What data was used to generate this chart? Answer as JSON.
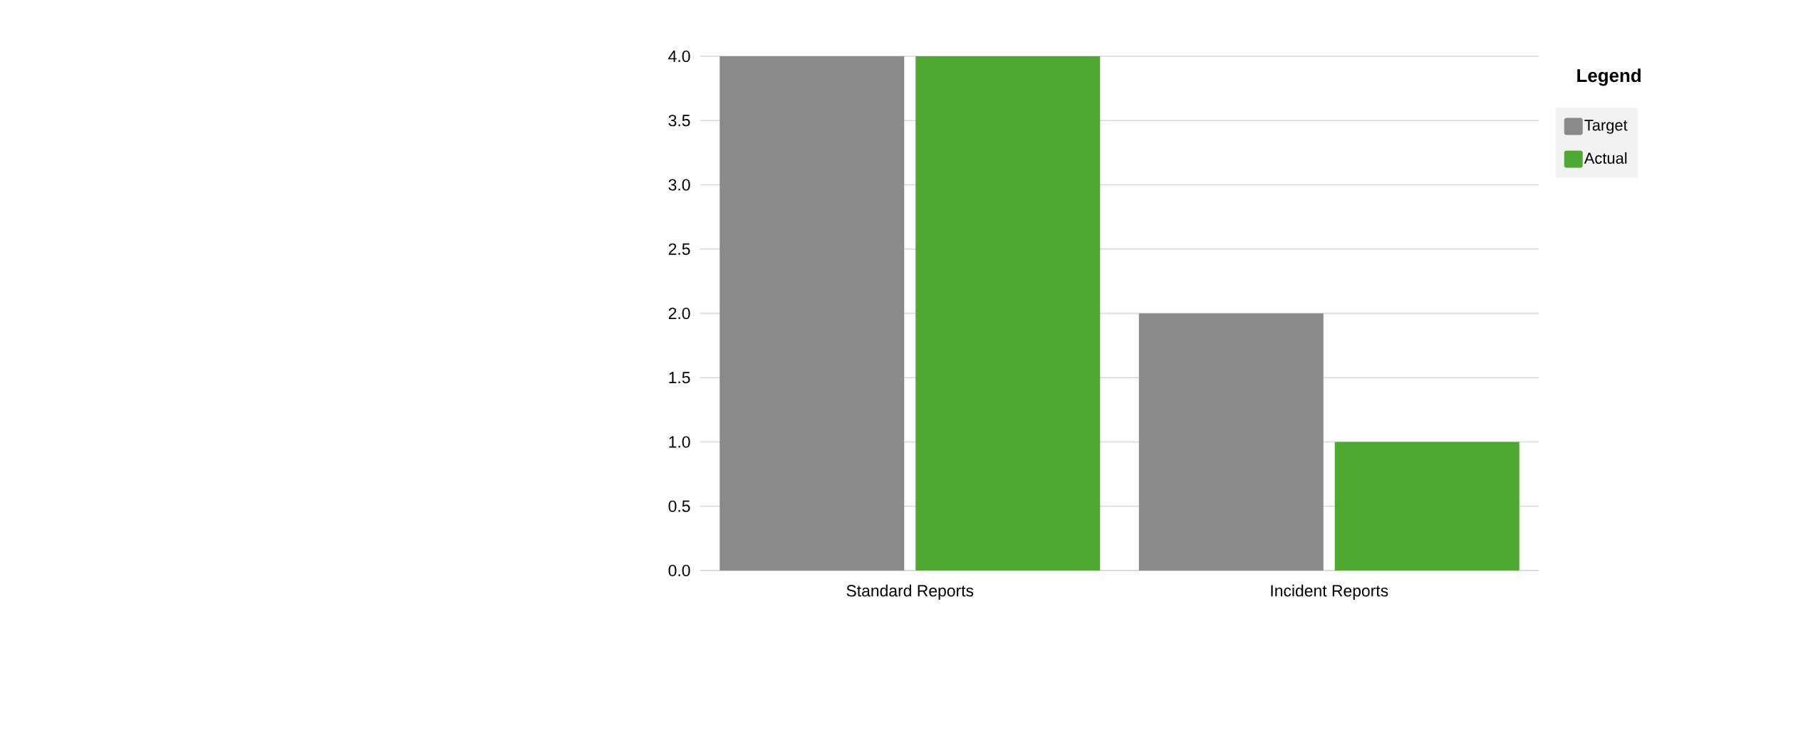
{
  "chart_data": {
    "type": "bar",
    "categories": [
      "Standard Reports",
      "Incident Reports"
    ],
    "series": [
      {
        "name": "Target",
        "color": "#8a8a8a",
        "values": [
          4,
          2
        ]
      },
      {
        "name": "Actual",
        "color": "#4ea832",
        "values": [
          4,
          1
        ]
      }
    ],
    "ylim": [
      0,
      4
    ],
    "yticks": [
      {
        "value": 0,
        "label": "0.0"
      },
      {
        "value": 0.5,
        "label": "0.5"
      },
      {
        "value": 1,
        "label": "1.0"
      },
      {
        "value": 1.5,
        "label": "1.5"
      },
      {
        "value": 2,
        "label": "2.0"
      },
      {
        "value": 2.5,
        "label": "2.5"
      },
      {
        "value": 3,
        "label": "3.0"
      },
      {
        "value": 3.5,
        "label": "3.5"
      },
      {
        "value": 4,
        "label": "4.0"
      }
    ],
    "grid": "y",
    "legend": "top right",
    "legend_title": "Legend"
  }
}
